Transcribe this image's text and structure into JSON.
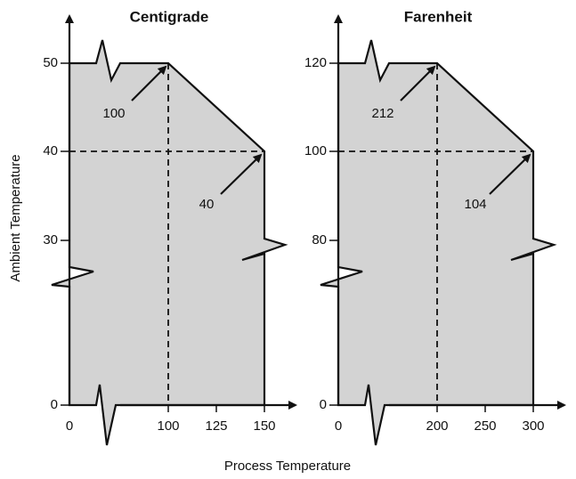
{
  "axis_labels": {
    "y": "Ambient Temperature",
    "x": "Process Temperature"
  },
  "panels": [
    {
      "title": "Centigrade",
      "yticks": [
        "50",
        "40",
        "30",
        "0"
      ],
      "xticks": [
        "0",
        "100",
        "125",
        "150"
      ],
      "annotations": [
        "100",
        "40"
      ]
    },
    {
      "title": "Farenheit",
      "yticks": [
        "120",
        "100",
        "80",
        "0"
      ],
      "xticks": [
        "0",
        "200",
        "250",
        "300"
      ],
      "annotations": [
        "212",
        "104"
      ]
    }
  ]
}
